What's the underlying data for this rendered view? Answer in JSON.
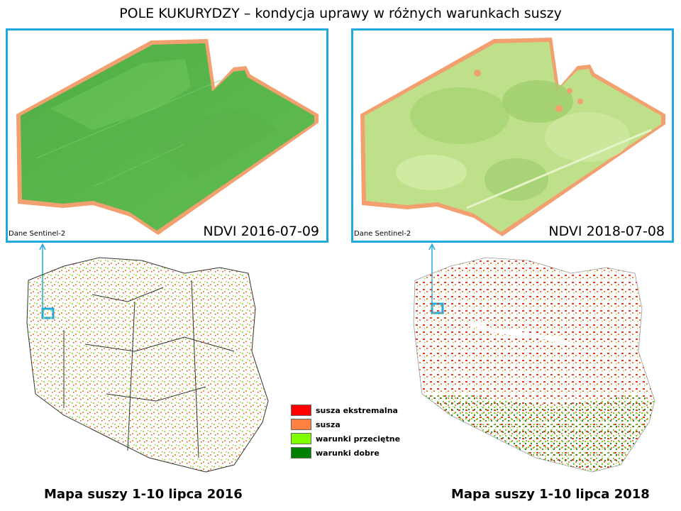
{
  "title": "POLE KUKURYDZY – kondycja uprawy w różnych warunkach suszy",
  "panels": [
    {
      "source": "Dane Sentinel-2",
      "label": "NDVI 2016-07-09"
    },
    {
      "source": "Dane Sentinel-2",
      "label": "NDVI 2018-07-08"
    }
  ],
  "maps": [
    {
      "caption": "Mapa suszy 1-10 lipca 2016"
    },
    {
      "caption": "Mapa suszy 1-10 lipca 2018"
    }
  ],
  "legend": [
    {
      "label": "susza ekstremalna",
      "color": "#ff0000"
    },
    {
      "label": "susza",
      "color": "#ff8040"
    },
    {
      "label": "warunki przeciętne",
      "color": "#80ff00"
    },
    {
      "label": "warunki dobre",
      "color": "#008000"
    }
  ],
  "colors": {
    "frame": "#1fa9de",
    "ndvi_2016_field": "#5cb84a",
    "ndvi_2018_field": "#b8dc80"
  }
}
